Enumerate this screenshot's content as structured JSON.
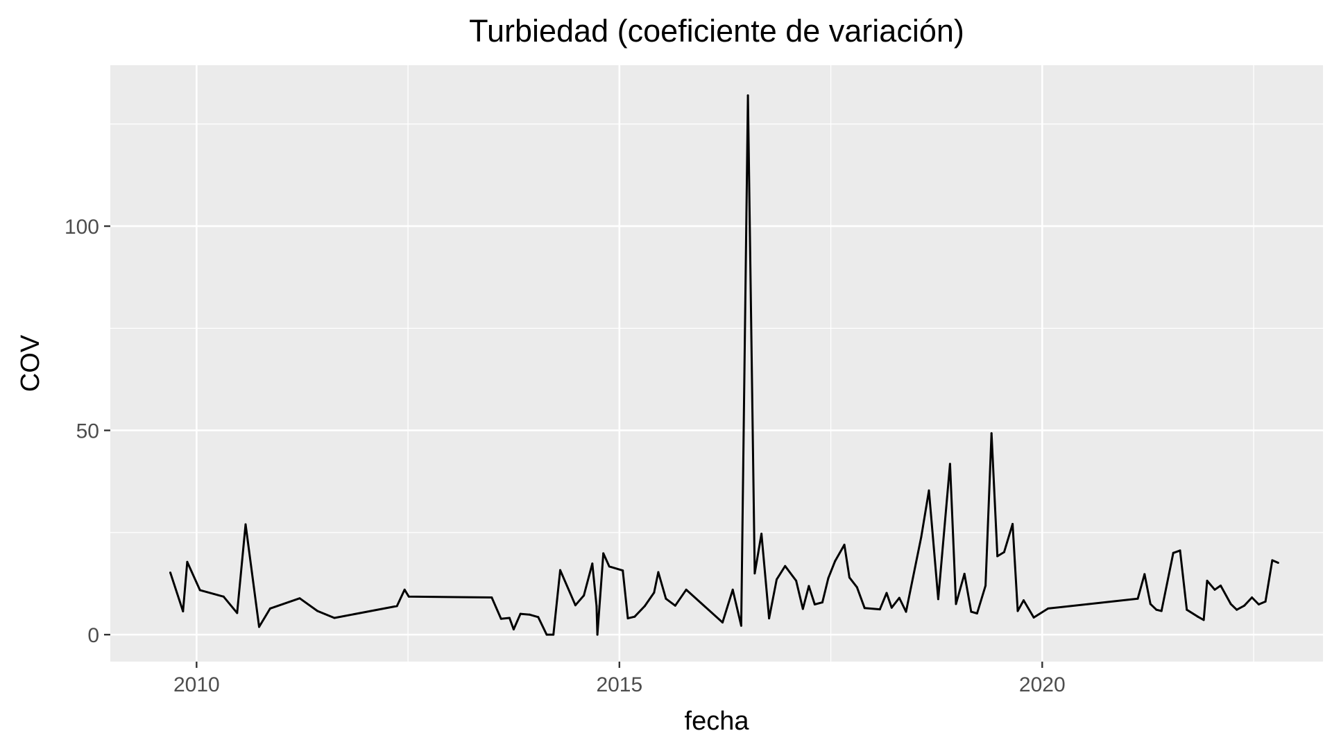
{
  "chart_data": {
    "type": "line",
    "title": "Turbiedad (coeficiente de variación)",
    "xlabel": "fecha",
    "ylabel": "COV",
    "x_tick_labels": [
      "2010",
      "2015",
      "2020"
    ],
    "y_tick_labels": [
      "0",
      "50",
      "100"
    ],
    "x_ticks": [
      2010,
      2015,
      2020
    ],
    "y_ticks": [
      0,
      50,
      100
    ],
    "xlim": [
      2008.98,
      2023.32
    ],
    "ylim": [
      -6.6,
      139.4
    ],
    "grid": true,
    "legend": "none",
    "colors": {
      "panel": "#EBEBEB",
      "grid": "#FFFFFF",
      "line": "#000000",
      "tick_text": "#4D4D4D",
      "axis_title": "#000000"
    },
    "series": [
      {
        "points": [
          [
            2009.69,
            15.2
          ],
          [
            2009.84,
            5.7
          ],
          [
            2009.89,
            17.8
          ],
          [
            2010.04,
            10.9
          ],
          [
            2010.32,
            9.3
          ],
          [
            2010.48,
            5.3
          ],
          [
            2010.58,
            27.0
          ],
          [
            2010.74,
            1.9
          ],
          [
            2010.87,
            6.4
          ],
          [
            2011.22,
            8.9
          ],
          [
            2011.43,
            5.8
          ],
          [
            2011.63,
            4.1
          ],
          [
            2012.37,
            7.0
          ],
          [
            2012.46,
            11.0
          ],
          [
            2012.51,
            9.3
          ],
          [
            2013.49,
            9.1
          ],
          [
            2013.6,
            3.9
          ],
          [
            2013.7,
            4.1
          ],
          [
            2013.75,
            1.3
          ],
          [
            2013.83,
            5.1
          ],
          [
            2013.94,
            4.9
          ],
          [
            2014.04,
            4.3
          ],
          [
            2014.14,
            0.0
          ],
          [
            2014.22,
            0.0
          ],
          [
            2014.3,
            15.8
          ],
          [
            2014.48,
            7.2
          ],
          [
            2014.58,
            9.6
          ],
          [
            2014.68,
            17.4
          ],
          [
            2014.73,
            7.0
          ],
          [
            2014.74,
            0.0
          ],
          [
            2014.81,
            19.9
          ],
          [
            2014.88,
            16.7
          ],
          [
            2015.04,
            15.7
          ],
          [
            2015.1,
            4.0
          ],
          [
            2015.18,
            4.4
          ],
          [
            2015.3,
            7.0
          ],
          [
            2015.41,
            10.3
          ],
          [
            2015.46,
            15.3
          ],
          [
            2015.55,
            8.8
          ],
          [
            2015.66,
            7.1
          ],
          [
            2015.79,
            11.0
          ],
          [
            2016.22,
            3.0
          ],
          [
            2016.34,
            11.0
          ],
          [
            2016.44,
            2.2
          ],
          [
            2016.52,
            132.0
          ],
          [
            2016.6,
            15.0
          ],
          [
            2016.68,
            24.7
          ],
          [
            2016.77,
            4.0
          ],
          [
            2016.86,
            13.5
          ],
          [
            2016.96,
            16.8
          ],
          [
            2017.09,
            13.2
          ],
          [
            2017.17,
            6.3
          ],
          [
            2017.24,
            11.9
          ],
          [
            2017.31,
            7.4
          ],
          [
            2017.4,
            7.9
          ],
          [
            2017.47,
            13.8
          ],
          [
            2017.55,
            18.0
          ],
          [
            2017.66,
            22.0
          ],
          [
            2017.72,
            14.0
          ],
          [
            2017.81,
            11.6
          ],
          [
            2017.9,
            6.5
          ],
          [
            2018.08,
            6.2
          ],
          [
            2018.16,
            10.2
          ],
          [
            2018.22,
            6.6
          ],
          [
            2018.31,
            9.0
          ],
          [
            2018.39,
            5.6
          ],
          [
            2018.57,
            24.0
          ],
          [
            2018.66,
            35.3
          ],
          [
            2018.77,
            8.7
          ],
          [
            2018.91,
            41.8
          ],
          [
            2018.98,
            7.5
          ],
          [
            2019.08,
            14.9
          ],
          [
            2019.16,
            5.6
          ],
          [
            2019.23,
            5.2
          ],
          [
            2019.33,
            12.0
          ],
          [
            2019.4,
            49.3
          ],
          [
            2019.47,
            19.2
          ],
          [
            2019.55,
            20.2
          ],
          [
            2019.65,
            27.1
          ],
          [
            2019.71,
            5.8
          ],
          [
            2019.78,
            8.4
          ],
          [
            2019.9,
            4.2
          ],
          [
            2020.07,
            6.4
          ],
          [
            2021.13,
            8.8
          ],
          [
            2021.21,
            14.8
          ],
          [
            2021.28,
            7.5
          ],
          [
            2021.35,
            6.1
          ],
          [
            2021.41,
            5.8
          ],
          [
            2021.55,
            20.0
          ],
          [
            2021.63,
            20.6
          ],
          [
            2021.71,
            6.1
          ],
          [
            2021.84,
            4.4
          ],
          [
            2021.91,
            3.6
          ],
          [
            2021.95,
            13.2
          ],
          [
            2022.04,
            11.0
          ],
          [
            2022.11,
            12.0
          ],
          [
            2022.23,
            7.5
          ],
          [
            2022.3,
            6.1
          ],
          [
            2022.39,
            7.1
          ],
          [
            2022.48,
            9.1
          ],
          [
            2022.56,
            7.4
          ],
          [
            2022.64,
            8.1
          ],
          [
            2022.72,
            18.2
          ],
          [
            2022.79,
            17.6
          ]
        ]
      }
    ]
  }
}
